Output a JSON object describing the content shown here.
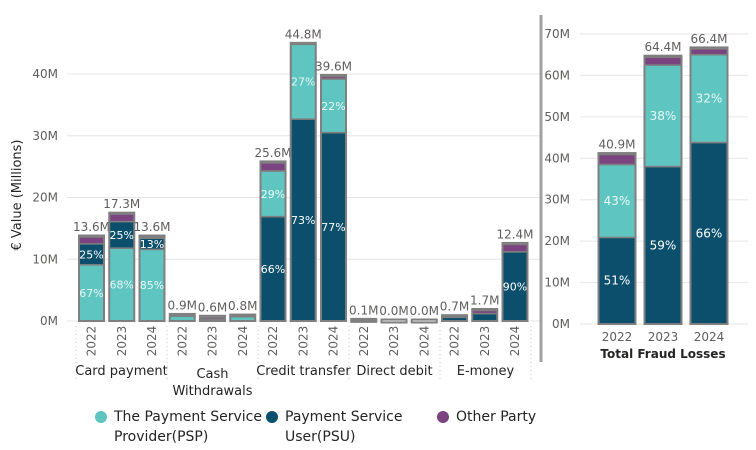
{
  "colors": {
    "psp": "#5fc5c0",
    "psu": "#0b4f6c",
    "other": "#7b4380",
    "border": "#7f7f7f"
  },
  "legend": [
    {
      "key": "psp",
      "label": "The Payment Service Provider(PSP)"
    },
    {
      "key": "psu",
      "label": "Payment Service User(PSU)"
    },
    {
      "key": "other",
      "label": "Other Party"
    }
  ],
  "chart_data": [
    {
      "type": "bar",
      "stacked": true,
      "ylabel": "€ Value (Millions)",
      "ylim": [
        0,
        45
      ],
      "yticks": [
        "0M",
        "10M",
        "20M",
        "30M",
        "40M"
      ],
      "ytick_values": [
        0,
        10,
        20,
        30,
        40
      ],
      "grid": true,
      "groups": [
        {
          "label": "Card payment",
          "bars": [
            {
              "year": "2022",
              "total": "13.6M",
              "psp": 9.1,
              "psu": 3.4,
              "other": 1.1,
              "psp_label": "67%",
              "psu_label": "25%"
            },
            {
              "year": "2023",
              "total": "17.3M",
              "psp": 11.8,
              "psu": 4.3,
              "other": 1.2,
              "psp_label": "68%",
              "psu_label": "25%"
            },
            {
              "year": "2024",
              "total": "13.6M",
              "psp": 11.6,
              "psu": 1.8,
              "other": 0.2,
              "psp_label": "85%",
              "psu_label": "13%"
            }
          ]
        },
        {
          "label": "Cash Withdrawals",
          "bars": [
            {
              "year": "2022",
              "total": "0.9M",
              "psp": 0.8,
              "psu": 0.0,
              "other": 0.1
            },
            {
              "year": "2023",
              "total": "0.6M",
              "psp": 0.3,
              "psu": 0.0,
              "other": 0.3
            },
            {
              "year": "2024",
              "total": "0.8M",
              "psp": 0.7,
              "psu": 0.0,
              "other": 0.1
            }
          ]
        },
        {
          "label": "Credit transfer",
          "bars": [
            {
              "year": "2022",
              "total": "25.6M",
              "psp": 7.4,
              "psu": 16.9,
              "other": 1.3,
              "psp_label": "29%",
              "psu_label": "66%"
            },
            {
              "year": "2023",
              "total": "44.8M",
              "psp": 12.1,
              "psu": 32.7,
              "other": 0.0,
              "psp_label": "27%",
              "psu_label": "73%"
            },
            {
              "year": "2024",
              "total": "39.6M",
              "psp": 8.7,
              "psu": 30.5,
              "other": 0.4,
              "psp_label": "22%",
              "psu_label": "77%"
            }
          ]
        },
        {
          "label": "Direct debit",
          "bars": [
            {
              "year": "2022",
              "total": "0.1M",
              "psp": 0.0,
              "psu": 0.05,
              "other": 0.05
            },
            {
              "year": "2023",
              "total": "0.0M",
              "psp": 0.0,
              "psu": 0.0,
              "other": 0.0
            },
            {
              "year": "2024",
              "total": "0.0M",
              "psp": 0.0,
              "psu": 0.0,
              "other": 0.0
            }
          ]
        },
        {
          "label": "E-money",
          "bars": [
            {
              "year": "2022",
              "total": "0.7M",
              "psp": 0.0,
              "psu": 0.6,
              "other": 0.1
            },
            {
              "year": "2023",
              "total": "1.7M",
              "psp": 0.0,
              "psu": 1.2,
              "other": 0.5
            },
            {
              "year": "2024",
              "total": "12.4M",
              "psp": 0.0,
              "psu": 11.2,
              "other": 1.2,
              "psu_label": "90%"
            }
          ]
        }
      ]
    },
    {
      "type": "bar",
      "stacked": true,
      "xlabel": "Total Fraud Losses",
      "ylim": [
        0,
        70
      ],
      "yticks": [
        "0M",
        "10M",
        "20M",
        "30M",
        "40M",
        "50M",
        "60M",
        "70M"
      ],
      "ytick_values": [
        0,
        10,
        20,
        30,
        40,
        50,
        60,
        70
      ],
      "grid": true,
      "bars": [
        {
          "year": "2022",
          "total": "40.9M",
          "psp": 17.6,
          "psu": 20.9,
          "other": 2.4,
          "psp_label": "43%",
          "psu_label": "51%"
        },
        {
          "year": "2023",
          "total": "64.4M",
          "psp": 24.5,
          "psu": 38.0,
          "other": 1.9,
          "psp_label": "38%",
          "psu_label": "59%"
        },
        {
          "year": "2024",
          "total": "66.4M",
          "psp": 21.2,
          "psu": 43.8,
          "other": 1.4,
          "psp_label": "32%",
          "psu_label": "66%"
        }
      ]
    }
  ]
}
